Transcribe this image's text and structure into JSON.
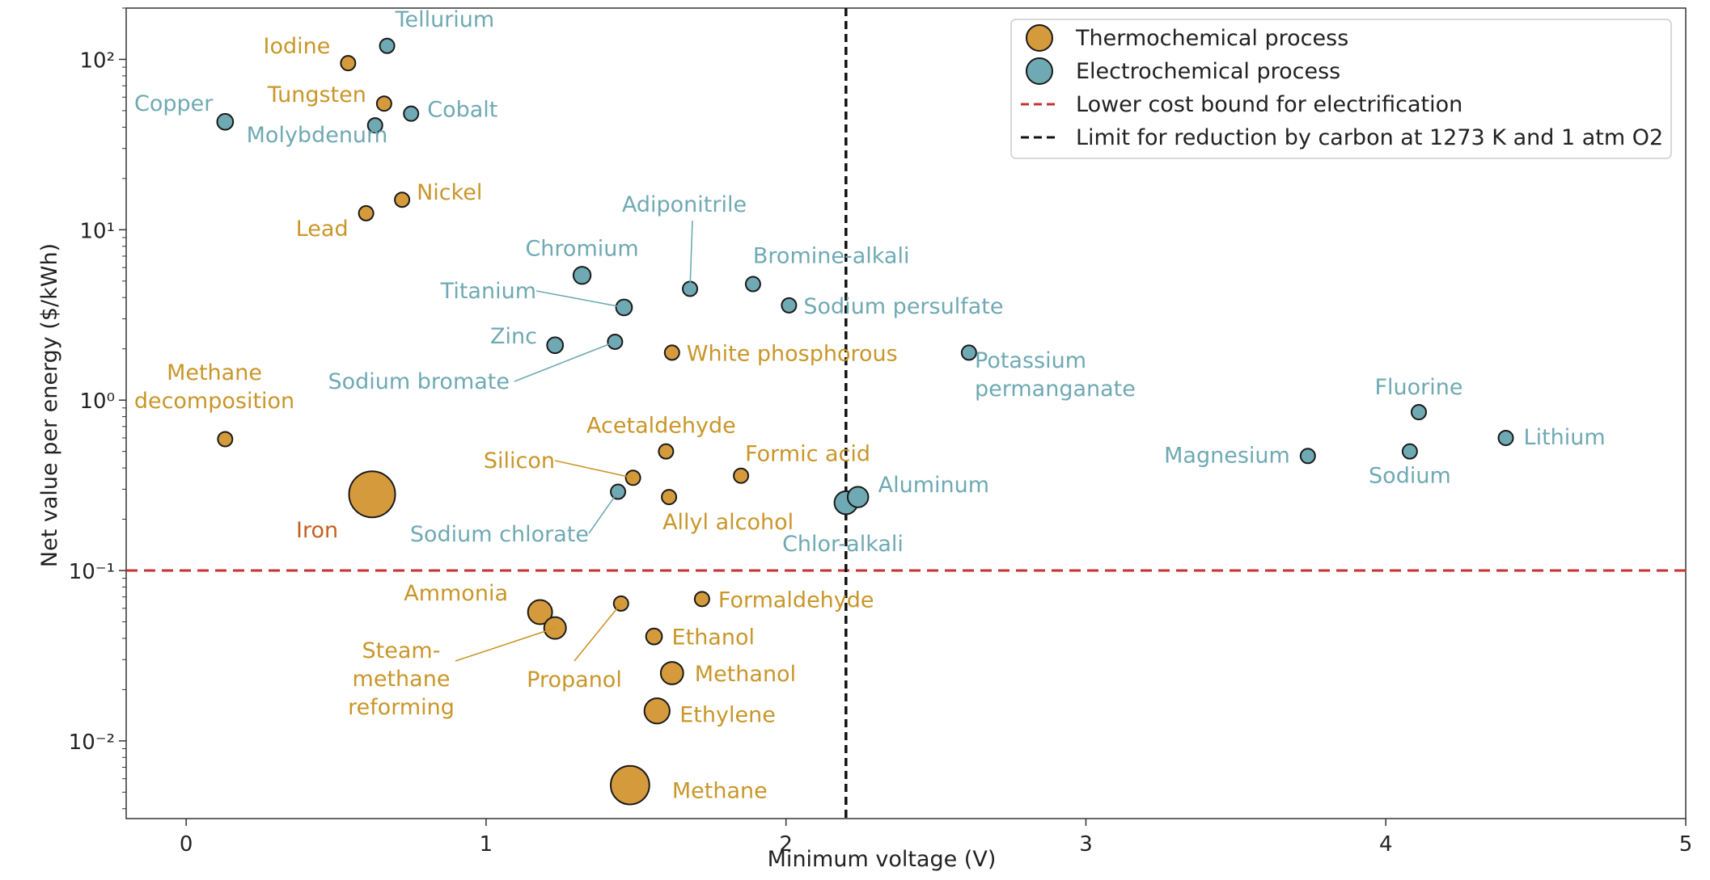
{
  "colors": {
    "thermo": "#D49A3C",
    "thermo_label": "#C9962A",
    "iron_label": "#C2621E",
    "electro": "#6FA9B3",
    "electro_label": "#6FA9B3",
    "marker_edge": "#1a1a1a",
    "electrification_line": "#C83232",
    "carbon_line": "#111111"
  },
  "chart_data": {
    "type": "scatter",
    "xlabel": "Minimum voltage (V)",
    "ylabel": "Net value per energy ($/kWh)",
    "xlim": [
      -0.2,
      5.0
    ],
    "ylim": [
      0.0035,
      200
    ],
    "yscale": "log",
    "x_ticks": [
      0,
      1,
      2,
      3,
      4,
      5
    ],
    "x_tick_labels": [
      "0",
      "1",
      "2",
      "3",
      "4",
      "5"
    ],
    "y_ticks": [
      0.01,
      0.1,
      1,
      10,
      100
    ],
    "y_tick_labels": [
      "10⁻²",
      "10⁻¹",
      "10⁰",
      "10¹",
      "10²"
    ],
    "grid": false,
    "legend_position": "top-right",
    "legend": [
      {
        "label": "Thermochemical process",
        "kind": "marker",
        "color_key": "thermo"
      },
      {
        "label": "Electrochemical process",
        "kind": "marker",
        "color_key": "electro"
      },
      {
        "label": "Lower cost bound for electrification",
        "kind": "dashed-line",
        "color_key": "electrification_line"
      },
      {
        "label": "Limit for reduction by carbon at 1273 K and 1 atm O2",
        "kind": "dashed-line",
        "color_key": "carbon_line"
      }
    ],
    "reference_lines": [
      {
        "orientation": "horizontal",
        "value": 0.1,
        "color_key": "electrification_line"
      },
      {
        "orientation": "vertical",
        "value": 2.2,
        "color_key": "carbon_line"
      }
    ],
    "series": [
      {
        "name": "Thermochemical process",
        "color_key": "thermo",
        "points": [
          {
            "label": "Iodine",
            "x": 0.54,
            "y": 95,
            "size": 1
          },
          {
            "label": "Tungsten",
            "x": 0.66,
            "y": 55,
            "size": 1
          },
          {
            "label": "Nickel",
            "x": 0.72,
            "y": 15,
            "size": 1
          },
          {
            "label": "Lead",
            "x": 0.6,
            "y": 12.5,
            "size": 1
          },
          {
            "label": "White phosphorous",
            "x": 1.62,
            "y": 1.9,
            "size": 1
          },
          {
            "label": "Methane decomposition",
            "x": 0.13,
            "y": 0.59,
            "size": 1
          },
          {
            "label": "Acetaldehyde",
            "x": 1.6,
            "y": 0.5,
            "size": 1
          },
          {
            "label": "Formic acid",
            "x": 1.85,
            "y": 0.36,
            "size": 1
          },
          {
            "label": "Silicon",
            "x": 1.49,
            "y": 0.35,
            "size": 1
          },
          {
            "label": "Allyl alcohol",
            "x": 1.61,
            "y": 0.27,
            "size": 1
          },
          {
            "label": "Iron",
            "x": 0.62,
            "y": 0.28,
            "size": 8
          },
          {
            "label": "Formaldehyde",
            "x": 1.72,
            "y": 0.068,
            "size": 1
          },
          {
            "label": "Propanol",
            "x": 1.45,
            "y": 0.064,
            "size": 1
          },
          {
            "label": "Ammonia",
            "x": 1.18,
            "y": 0.057,
            "size": 2.2
          },
          {
            "label": "Steam-methane reforming",
            "x": 1.23,
            "y": 0.046,
            "size": 1.8
          },
          {
            "label": "Ethanol",
            "x": 1.56,
            "y": 0.041,
            "size": 1.2
          },
          {
            "label": "Methanol",
            "x": 1.62,
            "y": 0.025,
            "size": 1.9
          },
          {
            "label": "Ethylene",
            "x": 1.57,
            "y": 0.015,
            "size": 2.4
          },
          {
            "label": "Methane",
            "x": 1.48,
            "y": 0.0055,
            "size": 5.6
          }
        ]
      },
      {
        "name": "Electrochemical process",
        "color_key": "electro",
        "points": [
          {
            "label": "Tellurium",
            "x": 0.67,
            "y": 120,
            "size": 1
          },
          {
            "label": "Copper",
            "x": 0.13,
            "y": 43,
            "size": 1.2
          },
          {
            "label": "Cobalt",
            "x": 0.75,
            "y": 48,
            "size": 1
          },
          {
            "label": "Molybdenum",
            "x": 0.63,
            "y": 41,
            "size": 1
          },
          {
            "label": "Chromium",
            "x": 1.32,
            "y": 5.4,
            "size": 1.4
          },
          {
            "label": "Adiponitrile",
            "x": 1.68,
            "y": 4.5,
            "size": 1
          },
          {
            "label": "Bromine-alkali",
            "x": 1.89,
            "y": 4.8,
            "size": 1
          },
          {
            "label": "Titanium",
            "x": 1.46,
            "y": 3.5,
            "size": 1.2
          },
          {
            "label": "Sodium persulfate",
            "x": 2.01,
            "y": 3.6,
            "size": 1
          },
          {
            "label": "Zinc",
            "x": 1.23,
            "y": 2.1,
            "size": 1.2
          },
          {
            "label": "Sodium bromate",
            "x": 1.43,
            "y": 2.2,
            "size": 1
          },
          {
            "label": "Potassium permanganate",
            "x": 2.61,
            "y": 1.9,
            "size": 1
          },
          {
            "label": "Fluorine",
            "x": 4.11,
            "y": 0.85,
            "size": 1
          },
          {
            "label": "Lithium",
            "x": 4.4,
            "y": 0.6,
            "size": 1
          },
          {
            "label": "Magnesium",
            "x": 3.74,
            "y": 0.47,
            "size": 1
          },
          {
            "label": "Sodium",
            "x": 4.08,
            "y": 0.5,
            "size": 1
          },
          {
            "label": "Aluminum",
            "x": 2.24,
            "y": 0.27,
            "size": 1.6
          },
          {
            "label": "Chlor-alkali",
            "x": 2.2,
            "y": 0.25,
            "size": 2
          },
          {
            "label": "Sodium chlorate",
            "x": 1.44,
            "y": 0.29,
            "size": 1
          }
        ]
      }
    ]
  }
}
